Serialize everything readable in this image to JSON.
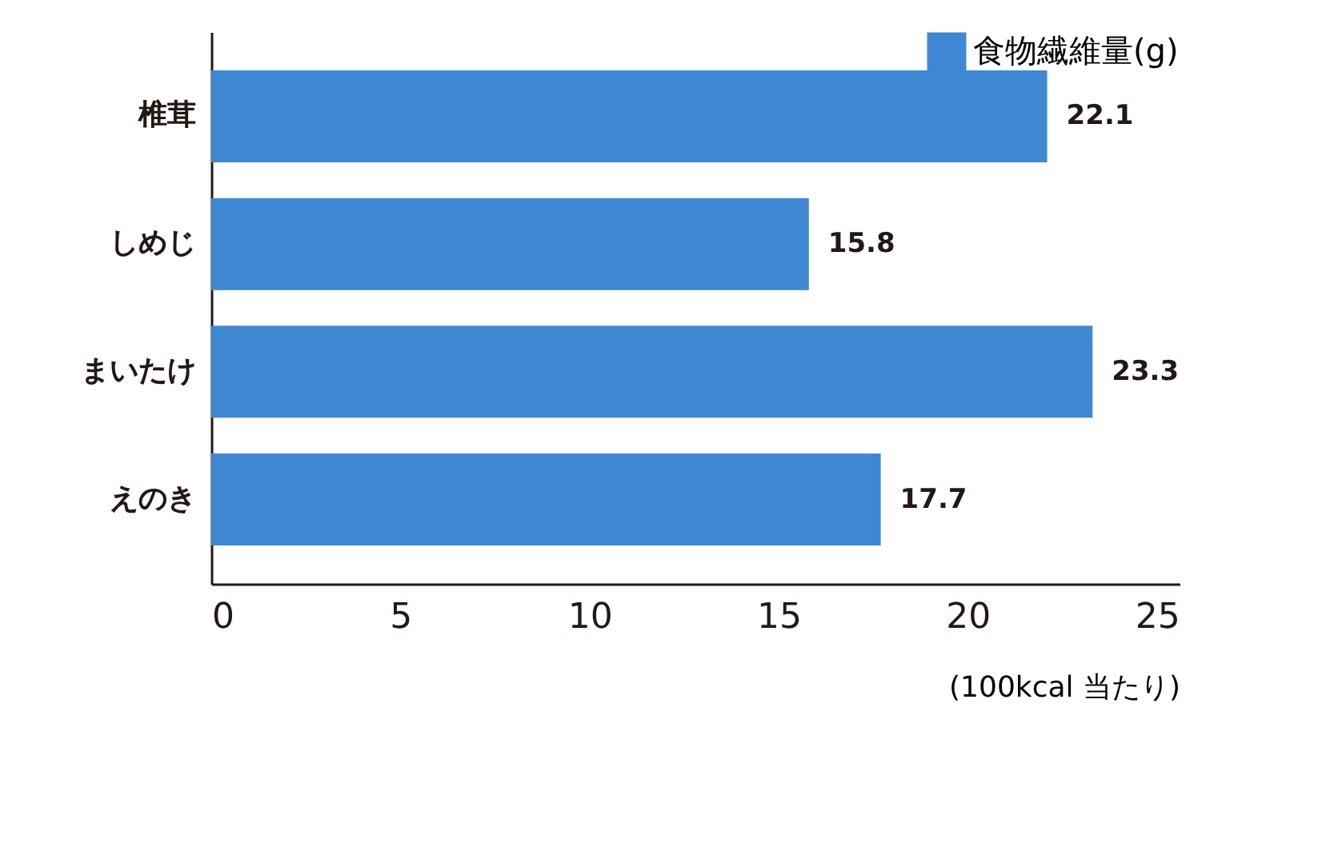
{
  "chart_data": {
    "type": "bar",
    "orientation": "horizontal",
    "categories": [
      "椎茸",
      "しめじ",
      "まいたけ",
      "えのき"
    ],
    "series": [
      {
        "name": "食物繊維量(g)",
        "color": "#3f88d4",
        "values": [
          22.1,
          15.8,
          23.3,
          17.7
        ]
      }
    ],
    "xlim": [
      0,
      25.6
    ],
    "xticks": [
      0,
      5,
      10,
      15,
      20,
      25
    ],
    "xlabel": "(100kcal 当たり)",
    "data_labels": true,
    "legend": "top right",
    "grid": false
  }
}
